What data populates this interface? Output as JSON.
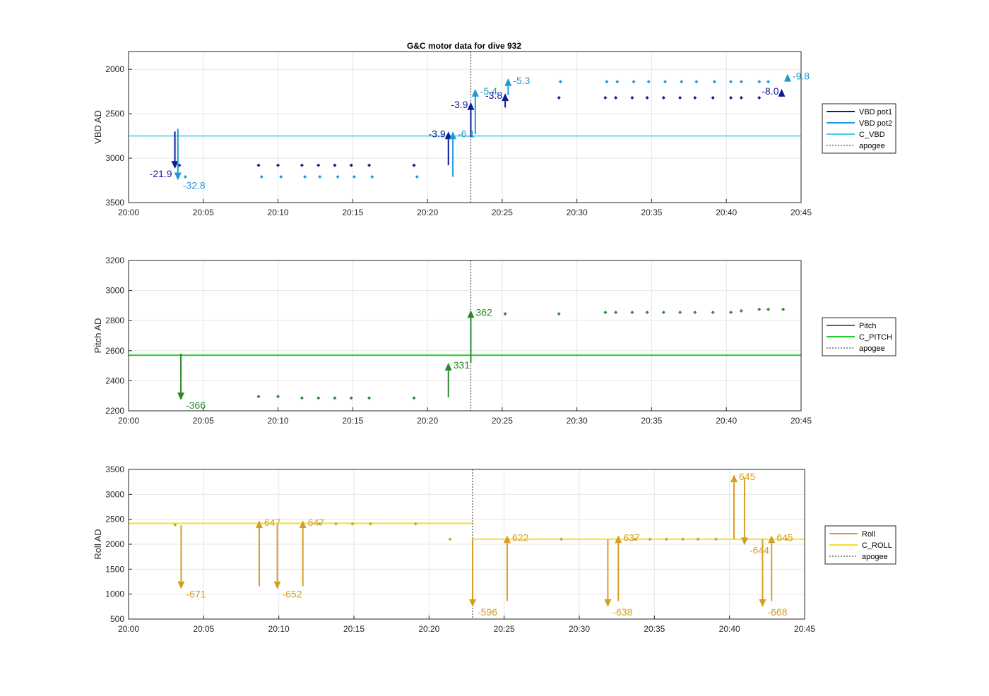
{
  "figure_title": "G&C motor data for dive 932",
  "chart_data": [
    {
      "type": "line",
      "panel": "vbd",
      "ylabel": "VBD AD",
      "ylim": [
        3500,
        1800
      ],
      "yticks": [
        2000,
        2500,
        3000,
        3500
      ],
      "xlim": [
        0,
        45
      ],
      "xtick_labels": [
        "20:00",
        "20:05",
        "20:10",
        "20:15",
        "20:20",
        "20:25",
        "20:30",
        "20:35",
        "20:40",
        "20:45"
      ],
      "apogee_x": 22.9,
      "grid": true,
      "legend_placement": "right",
      "legend": [
        {
          "name": "VBD pot1",
          "color": "#0a1a99",
          "style": "solid"
        },
        {
          "name": "VBD pot2",
          "color": "#1e9ad8",
          "style": "solid"
        },
        {
          "name": "C_VBD",
          "color": "#40d0e0",
          "style": "solid"
        },
        {
          "name": "apogee",
          "color": "#555555",
          "style": "dotted"
        }
      ],
      "hlines": [
        {
          "name": "C_VBD",
          "y": 2750,
          "x0": 0,
          "x1": 45,
          "color": "#40d0e0",
          "width": 1.5
        }
      ],
      "series": [
        {
          "name": "VBD pot1",
          "color": "#0a1a99",
          "x": [
            3.4,
            8.7,
            10.0,
            11.6,
            12.7,
            13.8,
            14.9,
            16.1,
            19.1,
            28.8,
            31.9,
            32.6,
            33.7,
            34.7,
            35.8,
            36.9,
            37.9,
            39.1,
            40.3,
            41.0,
            42.2
          ],
          "y": [
            3080,
            3080,
            3080,
            3080,
            3080,
            3080,
            3080,
            3080,
            3080,
            2320,
            2320,
            2320,
            2320,
            2320,
            2320,
            2320,
            2320,
            2320,
            2320,
            2320,
            2320
          ]
        },
        {
          "name": "VBD pot2",
          "color": "#1e9ad8",
          "x": [
            3.8,
            8.9,
            10.2,
            11.8,
            12.8,
            14.0,
            15.1,
            16.3,
            19.3,
            28.9,
            32.0,
            32.7,
            33.8,
            34.8,
            35.9,
            37.0,
            38.0,
            39.2,
            40.3,
            41.0,
            42.2,
            42.8
          ],
          "y": [
            3210,
            3210,
            3210,
            3210,
            3210,
            3210,
            3210,
            3210,
            3210,
            2140,
            2140,
            2140,
            2140,
            2140,
            2140,
            2140,
            2140,
            2140,
            2140,
            2140,
            2140,
            2140
          ]
        }
      ],
      "arrows": [
        {
          "x": 3.1,
          "y_from": 2700,
          "y_to": 3120,
          "color": "#0a1a99",
          "label": "-21.9",
          "label_side": "left"
        },
        {
          "x": 3.3,
          "y_from": 2670,
          "y_to": 3250,
          "color": "#1e9ad8",
          "label": "-32.8",
          "label_side": "right"
        },
        {
          "x": 21.4,
          "y_from": 3080,
          "y_to": 2700,
          "color": "#0a1a99",
          "label": "-3.9",
          "label_side": "left"
        },
        {
          "x": 21.7,
          "y_from": 3210,
          "y_to": 2700,
          "color": "#1e9ad8",
          "label": "-6.1",
          "label_side": "right"
        },
        {
          "x": 22.9,
          "y_from": 2760,
          "y_to": 2370,
          "color": "#0a1a99",
          "label": "-3.9",
          "label_side": "left"
        },
        {
          "x": 23.2,
          "y_from": 2730,
          "y_to": 2220,
          "color": "#1e9ad8",
          "label": "-5.4",
          "label_side": "right"
        },
        {
          "x": 25.2,
          "y_from": 2430,
          "y_to": 2270,
          "color": "#0a1a99",
          "label": "-3.8",
          "label_side": "left"
        },
        {
          "x": 25.4,
          "y_from": 2290,
          "y_to": 2100,
          "color": "#1e9ad8",
          "label": "-5.3",
          "label_side": "right"
        },
        {
          "x": 43.7,
          "y_from": 2300,
          "y_to": 2220,
          "color": "#0a1a99",
          "label": "-8.0",
          "label_side": "left"
        },
        {
          "x": 44.1,
          "y_from": 2140,
          "y_to": 2050,
          "color": "#1e9ad8",
          "label": "-9.8",
          "label_side": "right"
        }
      ]
    },
    {
      "type": "line",
      "panel": "pitch",
      "ylabel": "Pitch AD",
      "ylim": [
        2200,
        3200
      ],
      "yticks": [
        2200,
        2400,
        2600,
        2800,
        3000,
        3200
      ],
      "xlim": [
        0,
        45
      ],
      "xtick_labels": [
        "20:00",
        "20:05",
        "20:10",
        "20:15",
        "20:20",
        "20:25",
        "20:30",
        "20:35",
        "20:40",
        "20:45"
      ],
      "apogee_x": 22.9,
      "grid": true,
      "legend_placement": "right",
      "legend": [
        {
          "name": "Pitch",
          "color": "#2a8a2a",
          "style": "solid"
        },
        {
          "name": "C_PITCH",
          "color": "#22cc22",
          "style": "solid"
        },
        {
          "name": "apogee",
          "color": "#555555",
          "style": "dotted"
        }
      ],
      "hlines": [
        {
          "name": "C_PITCH",
          "y": 2570,
          "x0": 0,
          "x1": 45,
          "color": "#22cc22",
          "width": 2
        }
      ],
      "series": [
        {
          "name": "Pitch",
          "color": "#2a8a2a",
          "x": [
            8.7,
            10.0,
            11.6,
            12.7,
            13.8,
            14.9,
            16.1,
            19.1,
            25.2,
            28.8,
            31.9,
            32.6,
            33.7,
            34.7,
            35.8,
            36.9,
            37.9,
            39.1,
            40.3,
            41.0,
            42.2,
            42.8,
            43.8
          ],
          "y": [
            2295,
            2295,
            2285,
            2285,
            2285,
            2285,
            2285,
            2285,
            2845,
            2845,
            2855,
            2855,
            2855,
            2855,
            2855,
            2855,
            2855,
            2855,
            2855,
            2865,
            2875,
            2875,
            2875
          ]
        }
      ],
      "arrows": [
        {
          "x": 3.5,
          "y_from": 2580,
          "y_to": 2270,
          "color": "#2a8a2a",
          "label": "-366",
          "label_side": "right"
        },
        {
          "x": 21.4,
          "y_from": 2290,
          "y_to": 2520,
          "color": "#2a8a2a",
          "label": "331",
          "label_side": "right"
        },
        {
          "x": 22.9,
          "y_from": 2520,
          "y_to": 2870,
          "color": "#2a8a2a",
          "label": "362",
          "label_side": "right"
        }
      ]
    },
    {
      "type": "line",
      "panel": "roll",
      "ylabel": "Roll AD",
      "ylim": [
        500,
        3500
      ],
      "yticks": [
        500,
        1000,
        1500,
        2000,
        2500,
        3000,
        3500
      ],
      "xlim": [
        0,
        45
      ],
      "xtick_labels": [
        "20:00",
        "20:05",
        "20:10",
        "20:15",
        "20:20",
        "20:25",
        "20:30",
        "20:35",
        "20:40",
        "20:45"
      ],
      "apogee_x": 22.9,
      "grid": true,
      "legend_placement": "right",
      "legend": [
        {
          "name": "Roll",
          "color": "#d4a022",
          "style": "solid"
        },
        {
          "name": "C_ROLL",
          "color": "#f5e030",
          "style": "solid"
        },
        {
          "name": "apogee",
          "color": "#555555",
          "style": "dotted"
        }
      ],
      "hlines": [
        {
          "name": "C_ROLL",
          "y": 2420,
          "x0": 0,
          "x1": 22.9,
          "color": "#f5e030",
          "width": 2
        },
        {
          "name": "C_ROLL",
          "y": 2100,
          "x0": 22.9,
          "x1": 45,
          "color": "#f5e030",
          "width": 2
        }
      ],
      "series": [
        {
          "name": "Roll",
          "color": "#d4a022",
          "x": [
            3.1,
            12.7,
            13.8,
            14.9,
            16.1,
            19.1,
            21.4,
            28.8,
            33.7,
            34.7,
            35.8,
            36.9,
            37.9,
            39.1,
            43.8
          ],
          "y": [
            2390,
            2410,
            2410,
            2410,
            2410,
            2410,
            2100,
            2100,
            2100,
            2100,
            2100,
            2100,
            2100,
            2100,
            2100
          ]
        }
      ],
      "arrows": [
        {
          "x": 3.5,
          "y_from": 2380,
          "y_to": 1100,
          "color": "#d4a022",
          "label": "-671",
          "label_side": "right"
        },
        {
          "x": 8.7,
          "y_from": 1160,
          "y_to": 2480,
          "color": "#d4a022",
          "label": "647",
          "label_side": "right"
        },
        {
          "x": 9.9,
          "y_from": 2400,
          "y_to": 1100,
          "color": "#d4a022",
          "label": "-652",
          "label_side": "right"
        },
        {
          "x": 11.6,
          "y_from": 1160,
          "y_to": 2480,
          "color": "#d4a022",
          "label": "647",
          "label_side": "right"
        },
        {
          "x": 22.9,
          "y_from": 2100,
          "y_to": 740,
          "color": "#d4a022",
          "label": "-596",
          "label_side": "right"
        },
        {
          "x": 25.2,
          "y_from": 860,
          "y_to": 2180,
          "color": "#d4a022",
          "label": "622",
          "label_side": "right"
        },
        {
          "x": 31.9,
          "y_from": 2100,
          "y_to": 740,
          "color": "#d4a022",
          "label": "-638",
          "label_side": "right"
        },
        {
          "x": 32.6,
          "y_from": 860,
          "y_to": 2180,
          "color": "#d4a022",
          "label": "637",
          "label_side": "right"
        },
        {
          "x": 40.3,
          "y_from": 2100,
          "y_to": 3400,
          "color": "#d4a022",
          "label": "645",
          "label_side": "right"
        },
        {
          "x": 41.0,
          "y_from": 3330,
          "y_to": 1980,
          "color": "#d4a022",
          "label": "-644",
          "label_side": "right"
        },
        {
          "x": 42.2,
          "y_from": 2100,
          "y_to": 740,
          "color": "#d4a022",
          "label": "-668",
          "label_side": "right"
        },
        {
          "x": 42.8,
          "y_from": 860,
          "y_to": 2180,
          "color": "#d4a022",
          "label": "645",
          "label_side": "right"
        }
      ]
    }
  ]
}
